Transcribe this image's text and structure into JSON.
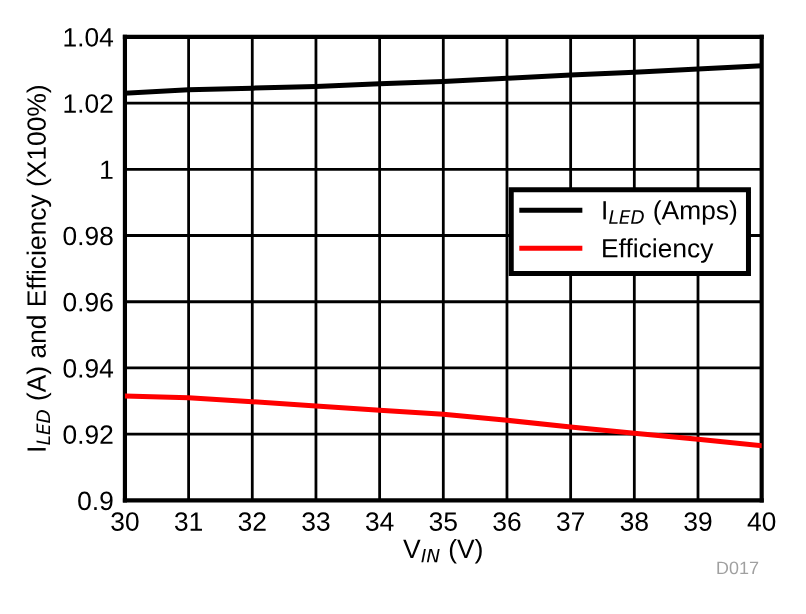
{
  "chart_data": {
    "type": "line",
    "xlabel": "V$_{IN}$ (V)",
    "ylabel": "I$_{LED}$ (A) and Efficiency (X100%)",
    "x": [
      30,
      31,
      32,
      33,
      34,
      35,
      36,
      37,
      38,
      39,
      40
    ],
    "series": [
      {
        "name": "I$_{LED}$ (Amps)",
        "color": "#000000",
        "values": [
          1.023,
          1.024,
          1.0245,
          1.025,
          1.0258,
          1.0265,
          1.0275,
          1.0285,
          1.0293,
          1.0303,
          1.0313
        ]
      },
      {
        "name": "Efficiency",
        "color": "#ff0000",
        "values": [
          0.9315,
          0.931,
          0.9298,
          0.9285,
          0.9272,
          0.926,
          0.9242,
          0.9222,
          0.9203,
          0.9185,
          0.9165
        ]
      }
    ],
    "xlim": [
      30,
      40
    ],
    "xticks": [
      30,
      31,
      32,
      33,
      34,
      35,
      36,
      37,
      38,
      39,
      40
    ],
    "ylim": [
      0.9,
      1.04
    ],
    "yticks": [
      0.9,
      0.92,
      0.94,
      0.96,
      0.98,
      1,
      1.02,
      1.04
    ],
    "grid": true,
    "legend": "right",
    "marker": "none",
    "line_style": "solid",
    "annotations": [
      "D017"
    ]
  }
}
